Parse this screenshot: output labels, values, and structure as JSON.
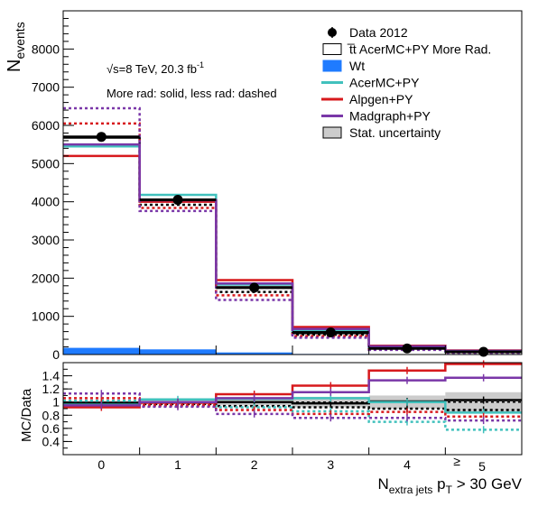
{
  "chart_data": {
    "type": "histogram-with-ratio",
    "categories": [
      "0",
      "1",
      "2",
      "3",
      "4",
      "≥ 5"
    ],
    "tick_top": "≥",
    "tick_bottom": "5",
    "ylabel_main": "N",
    "ylabel_main_sub": "events",
    "ylabel_ratio": "MC/Data",
    "xlabel": "N",
    "xlabel_sub": "extra jets",
    "xlabel_rest1": " p",
    "xlabel_sub2": "T",
    "xlabel_rest2": " > 30 GeV",
    "annotation": {
      "energy": "√s=8 TeV, 20.3 fb",
      "energy_sup": "-1",
      "note": "More rad: solid, less rad: dashed"
    },
    "legend_location": "top-right",
    "main": {
      "ylim": [
        0,
        9000
      ],
      "yticks": [
        0,
        1000,
        2000,
        3000,
        4000,
        5000,
        6000,
        7000,
        8000
      ],
      "data": [
        5700,
        4050,
        1750,
        580,
        160,
        70
      ],
      "wt": [
        175,
        135,
        55,
        15,
        5,
        2
      ],
      "series": [
        {
          "key": "acer_more",
          "color": "#000000",
          "dashed": false,
          "values": [
            5680,
            4030,
            1760,
            560,
            175,
            80
          ]
        },
        {
          "key": "acer_less",
          "color": "#000000",
          "dashed": true,
          "values": [
            5480,
            3920,
            1640,
            520,
            160,
            68
          ]
        },
        {
          "key": "acer_py",
          "color": "#41c1bd",
          "dashed": false,
          "values": [
            5450,
            4180,
            1830,
            620,
            190,
            90
          ]
        },
        {
          "key": "alpgen_more",
          "color": "#d7191c",
          "dashed": false,
          "values": [
            5200,
            4000,
            1950,
            720,
            230,
            105
          ]
        },
        {
          "key": "alpgen_less",
          "color": "#d7191c",
          "dashed": true,
          "values": [
            6050,
            3840,
            1550,
            480,
            140,
            55
          ]
        },
        {
          "key": "madgraph_more",
          "color": "#7a37a8",
          "dashed": false,
          "values": [
            5500,
            4040,
            1860,
            670,
            215,
            96
          ]
        },
        {
          "key": "madgraph_less",
          "color": "#7a37a8",
          "dashed": true,
          "values": [
            6450,
            3760,
            1430,
            440,
            120,
            45
          ]
        }
      ]
    },
    "ratio": {
      "ylim": [
        0.2,
        1.6
      ],
      "yticks": [
        0.4,
        0.6,
        0.8,
        1,
        1.2,
        1.4
      ],
      "stat_unc": [
        0.02,
        0.03,
        0.05,
        0.08,
        0.1,
        0.15
      ],
      "series": [
        {
          "key": "acer_more",
          "color": "#000000",
          "dashed": false,
          "values": [
            0.99,
            1.0,
            1.0,
            0.98,
            1.01,
            1.03
          ]
        },
        {
          "key": "acer_less",
          "color": "#000000",
          "dashed": true,
          "values": [
            0.96,
            0.97,
            0.94,
            0.92,
            0.9,
            0.88
          ]
        },
        {
          "key": "acer_py",
          "color": "#41c1bd",
          "dashed": false,
          "values": [
            0.96,
            1.04,
            1.05,
            1.06,
            1.0,
            0.84
          ]
        },
        {
          "key": "acer_py_less",
          "color": "#41c1bd",
          "dashed": true,
          "values": [
            1.02,
            1.0,
            0.92,
            0.86,
            0.7,
            0.58
          ]
        },
        {
          "key": "alpgen_more",
          "color": "#d7191c",
          "dashed": false,
          "values": [
            0.92,
            0.99,
            1.12,
            1.25,
            1.48,
            1.58
          ]
        },
        {
          "key": "alpgen_less",
          "color": "#d7191c",
          "dashed": true,
          "values": [
            1.06,
            0.95,
            0.88,
            0.82,
            0.85,
            0.78
          ]
        },
        {
          "key": "madgraph_more",
          "color": "#7a37a8",
          "dashed": false,
          "values": [
            0.95,
            1.0,
            1.06,
            1.15,
            1.33,
            1.37
          ]
        },
        {
          "key": "madgraph_less",
          "color": "#7a37a8",
          "dashed": true,
          "values": [
            1.13,
            0.93,
            0.82,
            0.76,
            0.76,
            0.72
          ]
        }
      ]
    },
    "legend": [
      {
        "key": "data",
        "label": "Data 2012",
        "kind": "marker",
        "color": "#000000"
      },
      {
        "key": "ttbar",
        "label": "t̅t AcerMC+PY More Rad.",
        "kind": "box",
        "color": "#ffffff"
      },
      {
        "key": "wt",
        "label": "Wt",
        "kind": "fill",
        "color": "#1f7bff"
      },
      {
        "key": "acer",
        "label": "AcerMC+PY",
        "kind": "line",
        "color": "#41c1bd"
      },
      {
        "key": "alpgen",
        "label": "Alpgen+PY",
        "kind": "line",
        "color": "#d7191c"
      },
      {
        "key": "madgraph",
        "label": "Madgraph+PY",
        "kind": "line",
        "color": "#7a37a8"
      },
      {
        "key": "stat",
        "label": "Stat. uncertainty",
        "kind": "fill",
        "color": "#cccccc"
      }
    ]
  }
}
